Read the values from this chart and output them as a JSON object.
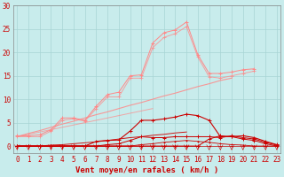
{
  "x": [
    0,
    1,
    2,
    3,
    4,
    5,
    6,
    7,
    8,
    9,
    10,
    11,
    12,
    13,
    14,
    15,
    16,
    17,
    18,
    19,
    20,
    21,
    22,
    23
  ],
  "background_color": "#c8ecec",
  "grid_color": "#a8d4d4",
  "xlabel": "Vent moyen/en rafales ( km/h )",
  "xlabel_color": "#cc0000",
  "xlabel_fontsize": 6.5,
  "tick_color": "#cc0000",
  "tick_fontsize": 5.5,
  "ylim": [
    0,
    30
  ],
  "yticks": [
    0,
    5,
    10,
    15,
    20,
    25,
    30
  ],
  "light_pink": "#ff8888",
  "dark_red": "#cc0000",
  "series_rafales": [
    2.2,
    2.2,
    2.4,
    3.5,
    6.0,
    6.0,
    5.5,
    8.5,
    11.0,
    11.5,
    15.0,
    15.2,
    22.0,
    24.2,
    24.8,
    26.5,
    19.5,
    15.5,
    15.5,
    15.8,
    16.3,
    16.5,
    null,
    null
  ],
  "series_vent_moy": [
    2.0,
    2.0,
    2.0,
    3.2,
    5.5,
    5.8,
    5.3,
    8.0,
    10.5,
    10.5,
    14.5,
    14.5,
    21.0,
    23.2,
    24.0,
    25.5,
    19.0,
    14.8,
    14.5,
    15.0,
    15.5,
    16.0,
    null,
    null
  ],
  "series_linear_high": [
    2.0,
    2.7,
    3.3,
    4.0,
    4.7,
    5.3,
    6.0,
    6.7,
    7.3,
    8.0,
    8.7,
    9.3,
    10.0,
    10.7,
    11.3,
    12.0,
    12.7,
    13.3,
    14.0,
    14.5,
    null,
    null,
    null,
    null
  ],
  "series_linear_low2": [
    2.0,
    2.5,
    3.0,
    3.5,
    4.0,
    4.5,
    5.0,
    5.5,
    6.0,
    6.5,
    7.0,
    7.5,
    8.0,
    null,
    null,
    null,
    null,
    null,
    null,
    null,
    null,
    null,
    null,
    null
  ],
  "series_main_dark": [
    0.0,
    0.0,
    0.0,
    0.0,
    0.0,
    0.0,
    0.0,
    1.0,
    1.2,
    1.3,
    3.2,
    5.5,
    5.5,
    5.8,
    6.2,
    6.8,
    6.5,
    5.5,
    2.0,
    2.0,
    2.2,
    1.8,
    1.0,
    0.3
  ],
  "series_dark2": [
    0.0,
    0.0,
    0.0,
    0.0,
    0.0,
    0.0,
    0.0,
    0.0,
    0.3,
    0.5,
    1.2,
    2.0,
    1.8,
    1.8,
    2.0,
    2.0,
    2.0,
    2.0,
    1.8,
    2.2,
    1.8,
    1.5,
    0.8,
    0.2
  ],
  "series_dark3": [
    0.0,
    0.0,
    0.0,
    0.0,
    0.0,
    0.0,
    0.0,
    0.0,
    0.0,
    0.0,
    0.0,
    0.3,
    0.5,
    0.8,
    1.0,
    1.2,
    1.0,
    0.8,
    0.5,
    0.3,
    0.2,
    0.0,
    0.0,
    0.0
  ],
  "series_linear_dark": [
    0.0,
    0.0,
    0.0,
    0.2,
    0.3,
    0.5,
    0.7,
    0.9,
    1.2,
    1.5,
    1.8,
    2.0,
    2.3,
    2.5,
    2.8,
    3.0,
    null,
    null,
    null,
    null,
    null,
    null,
    null,
    null
  ],
  "series_baseline": [
    0.0,
    0.0,
    0.0,
    0.0,
    0.0,
    0.0,
    0.0,
    0.0,
    0.0,
    0.0,
    0.0,
    0.0,
    0.0,
    0.0,
    0.0,
    0.0,
    0.0,
    0.0,
    0.0,
    0.0,
    0.0,
    0.0,
    0.0,
    0.0
  ],
  "series_dark_extra": [
    0.0,
    0.0,
    0.0,
    0.0,
    0.0,
    0.0,
    0.0,
    0.0,
    0.0,
    0.0,
    0.0,
    0.0,
    0.0,
    0.0,
    0.0,
    0.0,
    0.0,
    1.5,
    2.2,
    2.0,
    1.5,
    1.2,
    0.5,
    0.0
  ]
}
